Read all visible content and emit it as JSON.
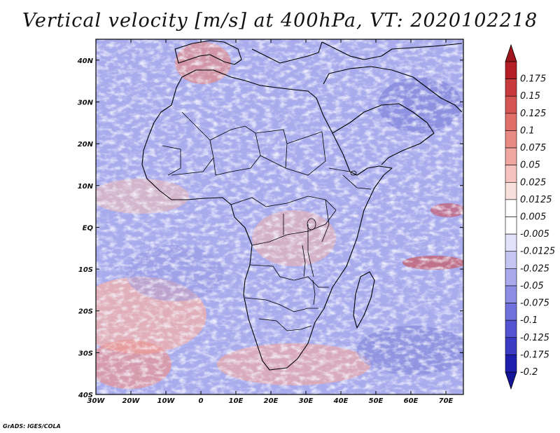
{
  "title": "Vertical velocity [m/s] at 400hPa, VT: 2020102218",
  "credit": "GrADS: IGES/COLA",
  "map": {
    "lon_range": [
      -30,
      75
    ],
    "lat_range": [
      -40,
      45
    ],
    "lon_ticks": [
      {
        "value": -30,
        "label": "30W"
      },
      {
        "value": -20,
        "label": "20W"
      },
      {
        "value": -10,
        "label": "10W"
      },
      {
        "value": 0,
        "label": "0"
      },
      {
        "value": 10,
        "label": "10E"
      },
      {
        "value": 20,
        "label": "20E"
      },
      {
        "value": 30,
        "label": "30E"
      },
      {
        "value": 40,
        "label": "40E"
      },
      {
        "value": 50,
        "label": "50E"
      },
      {
        "value": 60,
        "label": "60E"
      },
      {
        "value": 70,
        "label": "70E"
      }
    ],
    "lat_ticks": [
      {
        "value": 40,
        "label": "40N"
      },
      {
        "value": 30,
        "label": "30N"
      },
      {
        "value": 20,
        "label": "20N"
      },
      {
        "value": 10,
        "label": "10N"
      },
      {
        "value": 0,
        "label": "EQ"
      },
      {
        "value": -10,
        "label": "10S"
      },
      {
        "value": -20,
        "label": "20S"
      },
      {
        "value": -30,
        "label": "30S"
      },
      {
        "value": -40,
        "label": "40S"
      }
    ]
  },
  "colorbar": {
    "levels": [
      {
        "label": "0.175",
        "color": "#b51e26"
      },
      {
        "label": "0.15",
        "color": "#c83a3c"
      },
      {
        "label": "0.125",
        "color": "#d65553"
      },
      {
        "label": "0.1",
        "color": "#e06f6a"
      },
      {
        "label": "0.075",
        "color": "#ea8a84"
      },
      {
        "label": "0.05",
        "color": "#f1a7a1"
      },
      {
        "label": "0.025",
        "color": "#f6c3bf"
      },
      {
        "label": "0.0125",
        "color": "#fae0dd"
      },
      {
        "label": "0.005",
        "color": "#ffffff"
      },
      {
        "label": "-0.005",
        "color": "#ffffff"
      },
      {
        "label": "-0.0125",
        "color": "#e1e1fb"
      },
      {
        "label": "-0.025",
        "color": "#c5c5f4"
      },
      {
        "label": "-0.05",
        "color": "#a9a9ee"
      },
      {
        "label": "-0.075",
        "color": "#8d8de6"
      },
      {
        "label": "-0.1",
        "color": "#7171dd"
      },
      {
        "label": "-0.125",
        "color": "#5454d2"
      },
      {
        "label": "-0.175",
        "color": "#3a3ac4"
      },
      {
        "label": "-0.2",
        "color": "#1f1faf"
      }
    ],
    "top_arrow_color": "#a0161d",
    "bottom_arrow_color": "#14149a"
  }
}
